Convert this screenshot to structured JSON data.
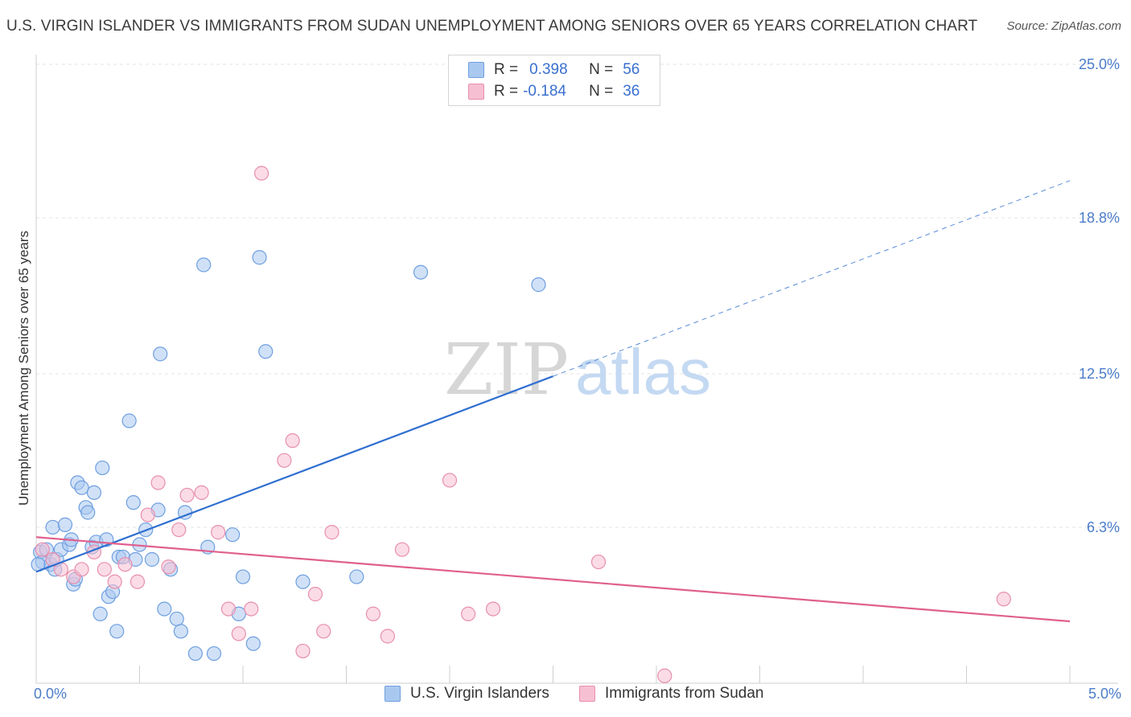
{
  "title": "U.S. VIRGIN ISLANDER VS IMMIGRANTS FROM SUDAN UNEMPLOYMENT AMONG SENIORS OVER 65 YEARS CORRELATION CHART",
  "source": "Source: ZipAtlas.com",
  "watermark": {
    "zip": "ZIP",
    "atlas": "atlas"
  },
  "legend": {
    "rows": [
      {
        "r_label": "R =",
        "r_value": "0.398",
        "n_label": "N =",
        "n_value": "56",
        "color": "#a9c8f0",
        "border": "#6f9fe0"
      },
      {
        "r_label": "R =",
        "r_value": "-0.184",
        "n_label": "N =",
        "n_value": "36",
        "color": "#f7bfd2",
        "border": "#e88fae"
      }
    ]
  },
  "chart_data": {
    "type": "scatter",
    "title": "U.S. VIRGIN ISLANDER VS IMMIGRANTS FROM SUDAN UNEMPLOYMENT AMONG SENIORS OVER 65 YEARS CORRELATION CHART",
    "xlabel": "",
    "ylabel": "Unemployment Among Seniors over 65 years",
    "xlim": [
      0,
      5
    ],
    "ylim": [
      0,
      25
    ],
    "x_tick_labels": [
      "0.0%",
      "5.0%"
    ],
    "y_ticks": [
      6.3,
      12.5,
      18.8,
      25.0
    ],
    "y_tick_labels": [
      "6.3%",
      "12.5%",
      "18.8%",
      "25.0%"
    ],
    "grid": true,
    "legend_position": "top-center",
    "series": [
      {
        "name": "U.S. Virgin Islanders",
        "color": "#a9c8f0",
        "stroke": "#6f9fe0",
        "trend_color": "#2f6fd0",
        "trend": {
          "x0": 0.0,
          "y0": 4.5,
          "x1": 2.5,
          "y1": 12.4,
          "dash_to_x": 5.0,
          "dash_to_y": 20.3
        },
        "points": [
          [
            0.02,
            5.3
          ],
          [
            0.03,
            4.9
          ],
          [
            0.05,
            5.4
          ],
          [
            0.07,
            4.8
          ],
          [
            0.08,
            6.3
          ],
          [
            0.09,
            4.6
          ],
          [
            0.1,
            5.0
          ],
          [
            0.12,
            5.4
          ],
          [
            0.14,
            6.4
          ],
          [
            0.16,
            5.6
          ],
          [
            0.17,
            5.8
          ],
          [
            0.18,
            4.0
          ],
          [
            0.19,
            4.2
          ],
          [
            0.2,
            8.1
          ],
          [
            0.22,
            7.9
          ],
          [
            0.24,
            7.1
          ],
          [
            0.25,
            6.9
          ],
          [
            0.27,
            5.5
          ],
          [
            0.28,
            7.7
          ],
          [
            0.29,
            5.7
          ],
          [
            0.31,
            2.8
          ],
          [
            0.32,
            8.7
          ],
          [
            0.34,
            5.8
          ],
          [
            0.35,
            3.5
          ],
          [
            0.37,
            3.7
          ],
          [
            0.39,
            2.1
          ],
          [
            0.4,
            5.1
          ],
          [
            0.42,
            5.1
          ],
          [
            0.45,
            10.6
          ],
          [
            0.47,
            7.3
          ],
          [
            0.48,
            5.0
          ],
          [
            0.5,
            5.6
          ],
          [
            0.53,
            6.2
          ],
          [
            0.56,
            5.0
          ],
          [
            0.59,
            7.0
          ],
          [
            0.6,
            13.3
          ],
          [
            0.62,
            3.0
          ],
          [
            0.65,
            4.6
          ],
          [
            0.68,
            2.6
          ],
          [
            0.7,
            2.1
          ],
          [
            0.72,
            6.9
          ],
          [
            0.77,
            1.2
          ],
          [
            0.81,
            16.9
          ],
          [
            0.83,
            5.5
          ],
          [
            0.86,
            1.2
          ],
          [
            0.95,
            6.0
          ],
          [
            0.98,
            2.8
          ],
          [
            1.0,
            4.3
          ],
          [
            1.05,
            1.6
          ],
          [
            1.08,
            17.2
          ],
          [
            1.11,
            13.4
          ],
          [
            1.29,
            4.1
          ],
          [
            1.55,
            4.3
          ],
          [
            1.86,
            16.6
          ],
          [
            2.43,
            16.1
          ],
          [
            0.01,
            4.8
          ]
        ]
      },
      {
        "name": "Immigrants from Sudan",
        "color": "#f7bfd2",
        "stroke": "#e88fae",
        "trend_color": "#e0608e",
        "trend": {
          "x0": 0.0,
          "y0": 5.9,
          "x1": 5.0,
          "y1": 2.5
        },
        "points": [
          [
            0.03,
            5.4
          ],
          [
            0.08,
            5.0
          ],
          [
            0.12,
            4.6
          ],
          [
            0.18,
            4.3
          ],
          [
            0.22,
            4.6
          ],
          [
            0.28,
            5.3
          ],
          [
            0.33,
            4.6
          ],
          [
            0.38,
            4.1
          ],
          [
            0.43,
            4.8
          ],
          [
            0.49,
            4.1
          ],
          [
            0.54,
            6.8
          ],
          [
            0.59,
            8.1
          ],
          [
            0.64,
            4.7
          ],
          [
            0.69,
            6.2
          ],
          [
            0.73,
            7.6
          ],
          [
            0.8,
            7.7
          ],
          [
            0.88,
            6.1
          ],
          [
            0.93,
            3.0
          ],
          [
            0.98,
            2.0
          ],
          [
            1.04,
            3.0
          ],
          [
            1.09,
            20.6
          ],
          [
            1.2,
            9.0
          ],
          [
            1.24,
            9.8
          ],
          [
            1.29,
            1.3
          ],
          [
            1.35,
            3.6
          ],
          [
            1.39,
            2.1
          ],
          [
            1.43,
            6.1
          ],
          [
            1.63,
            2.8
          ],
          [
            1.7,
            1.9
          ],
          [
            1.77,
            5.4
          ],
          [
            2.0,
            8.2
          ],
          [
            2.09,
            2.8
          ],
          [
            2.21,
            3.0
          ],
          [
            2.72,
            4.9
          ],
          [
            3.04,
            0.3
          ],
          [
            4.68,
            3.4
          ]
        ]
      }
    ]
  }
}
